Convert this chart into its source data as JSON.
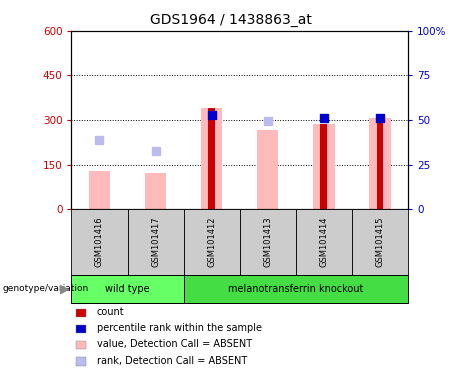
{
  "title": "GDS1964 / 1438863_at",
  "samples": [
    "GSM101416",
    "GSM101417",
    "GSM101412",
    "GSM101413",
    "GSM101414",
    "GSM101415"
  ],
  "groups": {
    "wild type": [
      "GSM101416",
      "GSM101417"
    ],
    "melanotransferrin knockout": [
      "GSM101412",
      "GSM101413",
      "GSM101414",
      "GSM101415"
    ]
  },
  "group_colors": {
    "wild type": "#66ff66",
    "melanotransferrin knockout": "#44dd44"
  },
  "count_values": [
    null,
    null,
    340,
    null,
    285,
    308
  ],
  "count_color": "#cc0000",
  "absent_value_values": [
    128,
    122,
    340,
    268,
    285,
    308
  ],
  "absent_value_color": "#ffbbbb",
  "percentile_rank_left_values": [
    null,
    null,
    318,
    null,
    308,
    308
  ],
  "percentile_rank_color": "#0000cc",
  "absent_rank_values": [
    232,
    197,
    null,
    298,
    null,
    null
  ],
  "absent_rank_color": "#bbbbee",
  "ylim_left": [
    0,
    600
  ],
  "ylim_right": [
    0,
    100
  ],
  "yticks_left": [
    0,
    150,
    300,
    450,
    600
  ],
  "ytick_labels_left": [
    "0",
    "150",
    "300",
    "450",
    "600"
  ],
  "yticks_right": [
    0,
    25,
    50,
    75,
    100
  ],
  "ytick_labels_right": [
    "0",
    "25",
    "50",
    "75",
    "100%"
  ],
  "left_axis_color": "#cc0000",
  "right_axis_color": "#0000cc",
  "grid_yticks": [
    150,
    300,
    450
  ],
  "legend_items": [
    {
      "label": "count",
      "color": "#cc0000"
    },
    {
      "label": "percentile rank within the sample",
      "color": "#0000cc"
    },
    {
      "label": "value, Detection Call = ABSENT",
      "color": "#ffbbbb"
    },
    {
      "label": "rank, Detection Call = ABSENT",
      "color": "#bbbbee"
    }
  ],
  "genotype_label": "genotype/variation",
  "subplot_bg": "#cccccc",
  "plot_bg": "#ffffff",
  "absent_bar_width": 0.38,
  "count_bar_width": 0.12
}
